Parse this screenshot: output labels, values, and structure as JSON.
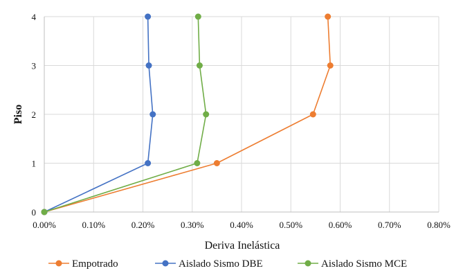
{
  "chart_data": {
    "type": "line",
    "xlabel": "Deriva Inelástica",
    "ylabel": "Piso",
    "xlim": [
      0,
      0.8
    ],
    "ylim": [
      0,
      4
    ],
    "x_ticks": [
      "0.00%",
      "0.10%",
      "0.20%",
      "0.30%",
      "0.40%",
      "0.50%",
      "0.60%",
      "0.70%",
      "0.80%"
    ],
    "y_ticks": [
      "0",
      "1",
      "2",
      "3",
      "4"
    ],
    "x_unit": "%",
    "grid": true,
    "legend_position": "bottom",
    "series": [
      {
        "name": "Empotrado",
        "color": "#ED7D31",
        "x": [
          0.0,
          0.35,
          0.545,
          0.58,
          0.575
        ],
        "y": [
          0,
          1,
          2,
          3,
          4
        ]
      },
      {
        "name": "Aislado Sismo DBE",
        "color": "#4472C4",
        "x": [
          0.0,
          0.21,
          0.22,
          0.212,
          0.21
        ],
        "y": [
          0,
          1,
          2,
          3,
          4
        ]
      },
      {
        "name": "Aislado Sismo MCE",
        "color": "#70AD47",
        "x": [
          0.0,
          0.31,
          0.328,
          0.315,
          0.312
        ],
        "y": [
          0,
          1,
          2,
          3,
          4
        ]
      }
    ]
  }
}
